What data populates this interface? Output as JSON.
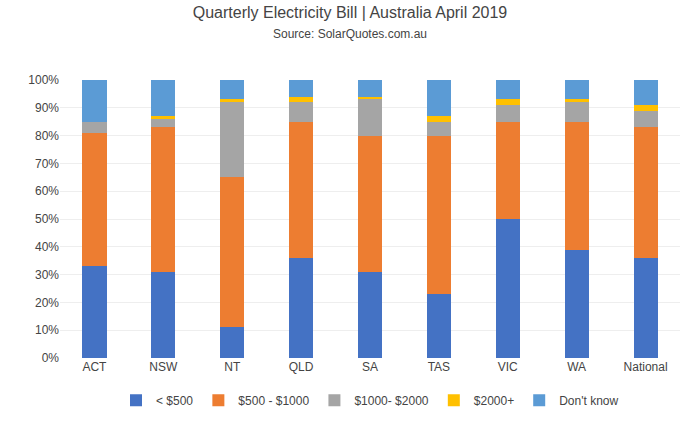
{
  "chart_data": {
    "type": "bar",
    "stacked": true,
    "title": "Quarterly Electricity Bill | Australia April 2019",
    "subtitle": "Source: SolarQuotes.com.au",
    "categories": [
      "ACT",
      "NSW",
      "NT",
      "QLD",
      "SA",
      "TAS",
      "VIC",
      "WA",
      "National"
    ],
    "series": [
      {
        "name": "< $500",
        "color": "#4472c4",
        "values": [
          33,
          31,
          11,
          36,
          31,
          23,
          50,
          39,
          36
        ]
      },
      {
        "name": "$500 - $1000",
        "color": "#ed7d31",
        "values": [
          48,
          52,
          54,
          49,
          49,
          57,
          35,
          46,
          47
        ]
      },
      {
        "name": "$1000- $2000",
        "color": "#a5a5a5",
        "values": [
          4,
          3,
          27,
          7,
          13,
          5,
          6,
          7,
          6
        ]
      },
      {
        "name": "$2000+",
        "color": "#ffc000",
        "values": [
          0,
          1,
          1,
          2,
          1,
          2,
          2,
          1,
          2
        ]
      },
      {
        "name": "Don't know",
        "color": "#5b9bd5",
        "values": [
          15,
          13,
          7,
          6,
          6,
          13,
          7,
          7,
          9
        ]
      }
    ],
    "ylim": [
      0,
      100
    ],
    "yticks": [
      {
        "value": 0,
        "label": "0%"
      },
      {
        "value": 10,
        "label": "10%"
      },
      {
        "value": 20,
        "label": "20%"
      },
      {
        "value": 30,
        "label": "30%"
      },
      {
        "value": 40,
        "label": "40%"
      },
      {
        "value": 50,
        "label": "50%"
      },
      {
        "value": 60,
        "label": "60%"
      },
      {
        "value": 70,
        "label": "70%"
      },
      {
        "value": 80,
        "label": "80%"
      },
      {
        "value": 90,
        "label": "90%"
      },
      {
        "value": 100,
        "label": "100%"
      }
    ],
    "grid": true,
    "legend": "bottom"
  }
}
